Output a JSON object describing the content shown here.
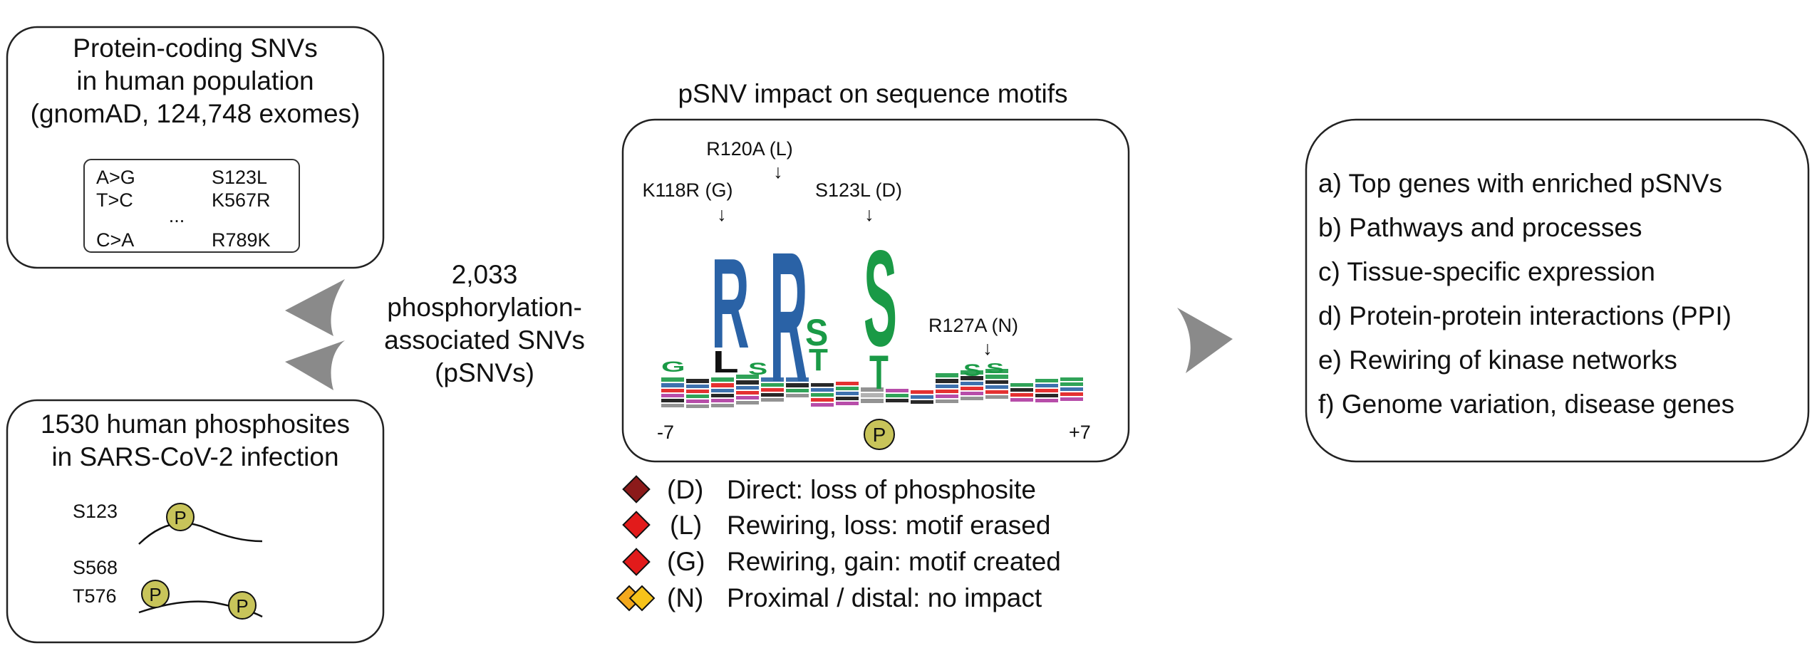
{
  "top_left_box": {
    "title_lines": [
      "Protein-coding SNVs",
      "in human population",
      "(gnomAD, 124,748 exomes)"
    ],
    "snv_list": {
      "left": [
        "A>G",
        "T>C",
        "C>A"
      ],
      "right": [
        "S123L",
        "K567R",
        "R789K"
      ],
      "ellipsis": "..."
    }
  },
  "bottom_left_box": {
    "title_lines": [
      "1530 human phosphosites",
      "in SARS-CoV-2 infection"
    ],
    "site_labels": [
      "S123",
      "S568",
      "T576"
    ],
    "phospho_symbol": "P"
  },
  "center_text": {
    "lines": [
      "2,033",
      "phosphorylation-",
      "associated SNVs",
      "(pSNVs)"
    ]
  },
  "motif_panel": {
    "title": "pSNV impact on sequence motifs",
    "annotations": [
      "R120A (L)",
      "K118R (G)",
      "S123L (D)",
      "R127A (N)"
    ],
    "arrow_glyph": "↓",
    "axis_start": "-7",
    "axis_end": "+7",
    "center_symbol": "P",
    "logo_letters": [
      "G",
      "L",
      "S",
      "R",
      "R",
      "S",
      "T",
      "S",
      "T",
      "S",
      "S"
    ]
  },
  "legend": {
    "items": [
      {
        "code": "(D)",
        "text": "Direct: loss of phosphosite",
        "color": "#8b1a1a"
      },
      {
        "code": "(L)",
        "text": "Rewiring, loss: motif erased",
        "color": "#e21b1b"
      },
      {
        "code": "(G)",
        "text": "Rewiring, gain: motif created",
        "color": "#e21b1b"
      },
      {
        "code": "(N)",
        "text": "Proximal / distal: no impact",
        "color": "#f3a81c"
      }
    ]
  },
  "analyses_box": {
    "items": [
      "a) Top genes with enriched pSNVs",
      "b) Pathways and processes",
      "c) Tissue-specific expression",
      "d) Protein-protein interactions (PPI)",
      "e) Rewiring of kinase networks",
      " f) Genome variation, disease genes"
    ]
  },
  "colors": {
    "logo_blue": "#2a62a6",
    "logo_green": "#1a9a46",
    "arrow_gray": "#8a8a8a",
    "phospho_fill": "#c8c45a"
  }
}
